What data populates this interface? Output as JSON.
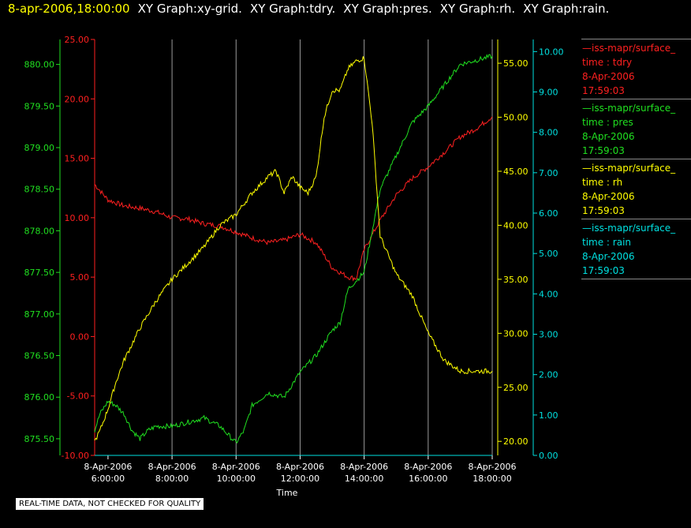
{
  "header": {
    "timestamp": "8-apr-2006,18:00:00",
    "graphs": [
      "XY Graph:xy-grid.",
      "XY Graph:tdry.",
      "XY Graph:pres.",
      "XY Graph:rh.",
      "XY Graph:rain."
    ]
  },
  "note": "REAL-TIME DATA, NOT CHECKED FOR QUALITY",
  "legend": [
    {
      "name": "—iss-mapr/surface_",
      "field": "time : tdry",
      "date": "8-Apr-2006",
      "time": "17:59:03",
      "color": "#ff2020"
    },
    {
      "name": "—iss-mapr/surface_",
      "field": "time : pres",
      "date": "8-Apr-2006",
      "time": "17:59:03",
      "color": "#20e020"
    },
    {
      "name": "—iss-mapr/surface_",
      "field": "time : rh",
      "date": "8-Apr-2006",
      "time": "17:59:03",
      "color": "#ffff00"
    },
    {
      "name": "—iss-mapr/surface_",
      "field": "time : rain",
      "date": "8-Apr-2006",
      "time": "17:59:03",
      "color": "#00e0e0"
    }
  ],
  "chart_data": {
    "type": "line",
    "xlabel": "Time",
    "x_range": [
      "2006-04-08 05:35",
      "2006-04-08 18:00"
    ],
    "x_ticks": [
      {
        "date": "8-Apr-2006",
        "time": "6:00:00"
      },
      {
        "date": "8-Apr-2006",
        "time": "8:00:00"
      },
      {
        "date": "8-Apr-2006",
        "time": "10:00:00"
      },
      {
        "date": "8-Apr-2006",
        "time": "12:00:00"
      },
      {
        "date": "8-Apr-2006",
        "time": "14:00:00"
      },
      {
        "date": "8-Apr-2006",
        "time": "16:00:00"
      },
      {
        "date": "8-Apr-2006",
        "time": "18:00:00"
      }
    ],
    "grid": "vertical",
    "axes": [
      {
        "id": "tdry",
        "color": "#ff2020",
        "range": [
          -10,
          25
        ],
        "ticks": [
          "-10.00",
          "-5.00",
          "0.00",
          "5.00",
          "10.00",
          "15.00",
          "20.00",
          "25.00"
        ]
      },
      {
        "id": "pres",
        "color": "#20e020",
        "range": [
          875.3,
          880.3
        ],
        "ticks": [
          "875.50",
          "876.00",
          "876.50",
          "877.00",
          "877.50",
          "878.00",
          "878.50",
          "879.00",
          "879.50",
          "880.00"
        ]
      },
      {
        "id": "rh",
        "color": "#ffff00",
        "range": [
          18.7,
          57.2
        ],
        "ticks": [
          "20.00",
          "25.00",
          "30.00",
          "35.00",
          "40.00",
          "45.00",
          "50.00",
          "55.00"
        ]
      },
      {
        "id": "rain",
        "color": "#00e0e0",
        "range": [
          0,
          10.3
        ],
        "ticks": [
          "0.00",
          "1.00",
          "2.00",
          "3.00",
          "4.00",
          "5.00",
          "6.00",
          "7.00",
          "8.00",
          "9.00",
          "10.00"
        ]
      }
    ],
    "series": [
      {
        "axis": "tdry",
        "color": "#ff2020",
        "x": [
          "05:35",
          "06:00",
          "06:30",
          "07:00",
          "07:30",
          "08:00",
          "08:30",
          "09:00",
          "09:30",
          "10:00",
          "10:30",
          "11:00",
          "11:30",
          "12:00",
          "12:30",
          "13:00",
          "13:30",
          "13:45",
          "14:00",
          "14:30",
          "15:00",
          "15:30",
          "16:00",
          "16:30",
          "17:00",
          "17:30",
          "18:00"
        ],
        "y": [
          12.8,
          11.5,
          11.0,
          10.8,
          10.5,
          10.0,
          9.9,
          9.5,
          9.3,
          8.8,
          8.3,
          7.9,
          8.1,
          8.6,
          7.9,
          5.8,
          5.0,
          4.9,
          7.3,
          9.8,
          11.9,
          13.3,
          14.3,
          15.5,
          16.8,
          17.5,
          18.5
        ]
      },
      {
        "axis": "pres",
        "color": "#20e020",
        "x": [
          "05:35",
          "05:45",
          "06:00",
          "06:15",
          "06:30",
          "06:45",
          "07:00",
          "07:15",
          "07:30",
          "08:00",
          "08:30",
          "09:00",
          "09:30",
          "10:00",
          "10:15",
          "10:30",
          "11:00",
          "11:30",
          "12:00",
          "12:30",
          "13:00",
          "13:15",
          "13:30",
          "14:00",
          "14:30",
          "15:00",
          "15:30",
          "16:00",
          "16:30",
          "17:00",
          "17:30",
          "18:00"
        ],
        "y": [
          875.6,
          875.8,
          875.95,
          875.9,
          875.8,
          875.6,
          875.5,
          875.6,
          875.65,
          875.65,
          875.7,
          875.75,
          875.65,
          875.45,
          875.6,
          875.9,
          876.05,
          876.0,
          876.3,
          876.5,
          876.8,
          876.9,
          877.3,
          877.5,
          878.5,
          878.9,
          879.3,
          879.5,
          879.75,
          880.0,
          880.05,
          880.1
        ]
      },
      {
        "axis": "rh",
        "color": "#ffff00",
        "x": [
          "05:35",
          "05:45",
          "06:00",
          "06:15",
          "06:30",
          "06:45",
          "07:00",
          "07:30",
          "08:00",
          "08:30",
          "09:00",
          "09:30",
          "10:00",
          "10:30",
          "11:00",
          "11:15",
          "11:30",
          "11:45",
          "12:00",
          "12:15",
          "12:30",
          "12:45",
          "13:00",
          "13:15",
          "13:30",
          "13:45",
          "14:00",
          "14:15",
          "14:30",
          "15:00",
          "15:30",
          "16:00",
          "16:30",
          "17:00",
          "17:30",
          "18:00"
        ],
        "y": [
          20.0,
          21.0,
          23.0,
          25.5,
          27.5,
          29.0,
          30.5,
          33.0,
          35.0,
          36.5,
          38.0,
          40.0,
          41.0,
          43.0,
          44.5,
          45.0,
          43.0,
          44.5,
          43.5,
          43.0,
          44.5,
          50.0,
          52.5,
          52.5,
          54.5,
          55.2,
          55.5,
          49.5,
          39.0,
          35.5,
          33.5,
          30.0,
          27.5,
          26.5,
          26.5,
          26.5
        ]
      },
      {
        "axis": "rain",
        "color": "#00e0e0",
        "x": [
          "05:35",
          "18:00"
        ],
        "y": [
          0.0,
          0.0
        ]
      }
    ]
  }
}
